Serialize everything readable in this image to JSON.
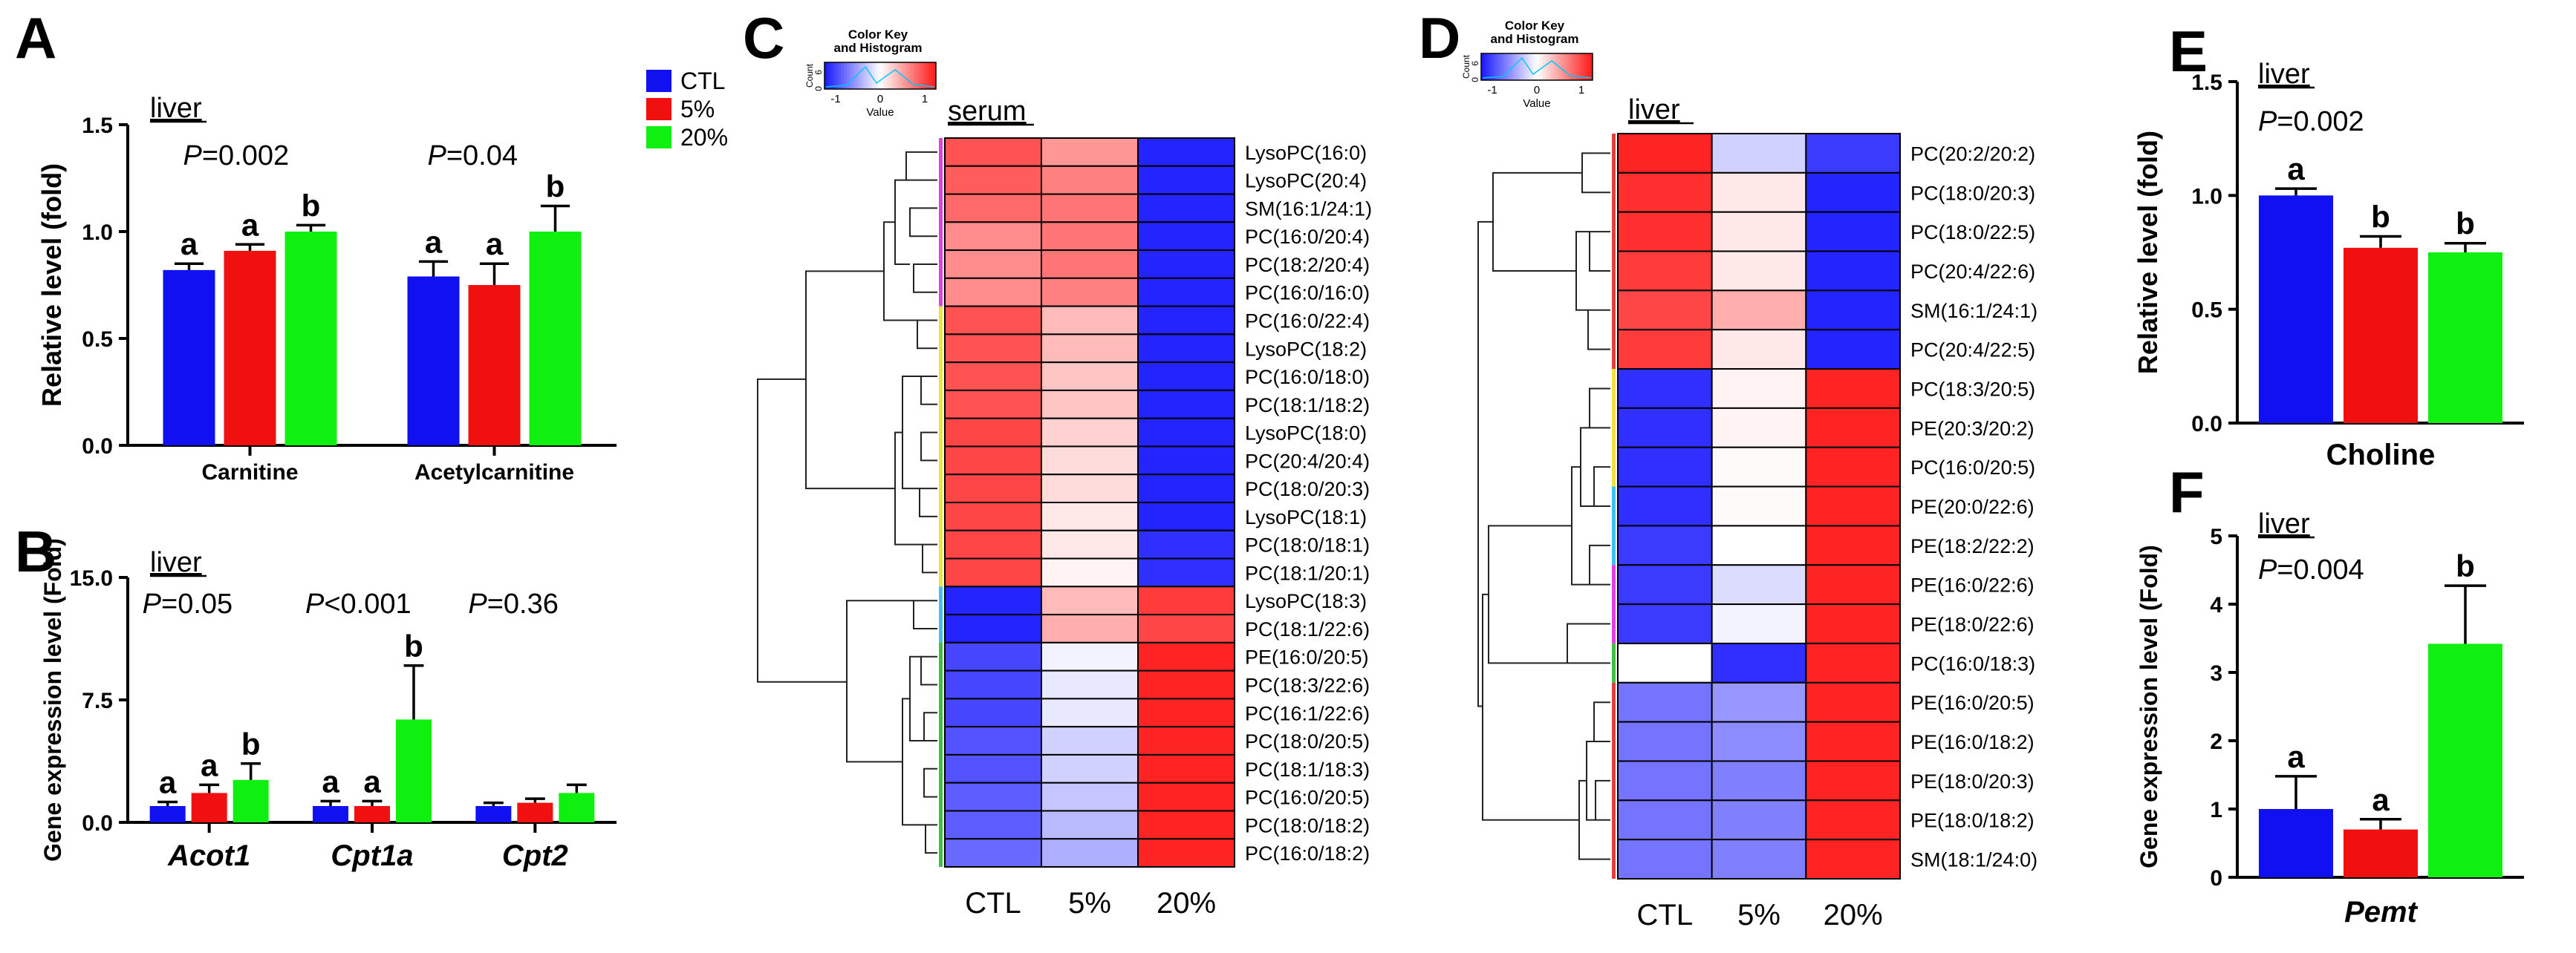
{
  "colors": {
    "CTL": "#1010f0",
    "5%": "#f01010",
    "20%": "#10f010",
    "axis": "#000000",
    "grid_line": "#000000"
  },
  "legend": {
    "entries": [
      "CTL",
      "5%",
      "20%"
    ]
  },
  "chart_data": [
    {
      "panel": "A",
      "type": "bar",
      "tissue_label": "liver",
      "ylabel": "Relative level (fold)",
      "ylim": [
        0,
        1.5
      ],
      "yticks": [
        "0.0",
        "0.5",
        "1.0",
        "1.5"
      ],
      "ytick_values": [
        0,
        0.5,
        1.0,
        1.5
      ],
      "categories": [
        "Carnitine",
        "Acetylcarnitine"
      ],
      "pvalues": [
        "=0.002",
        "=0.04"
      ],
      "series": [
        {
          "name": "CTL",
          "values": [
            0.82,
            0.79
          ],
          "errors": [
            0.03,
            0.07
          ],
          "letters": [
            "a",
            "a"
          ]
        },
        {
          "name": "5%",
          "values": [
            0.91,
            0.75
          ],
          "errors": [
            0.03,
            0.1
          ],
          "letters": [
            "a",
            "a"
          ]
        },
        {
          "name": "20%",
          "values": [
            1.0,
            1.0
          ],
          "errors": [
            0.03,
            0.12
          ],
          "letters": [
            "b",
            "b"
          ]
        }
      ]
    },
    {
      "panel": "B",
      "type": "bar",
      "tissue_label": "liver",
      "ylabel": "Gene expression level (Fold)",
      "ylim": [
        0,
        15
      ],
      "yticks": [
        "0.0",
        "7.5",
        "15.0"
      ],
      "ytick_values": [
        0,
        7.5,
        15
      ],
      "categories": [
        "Acot1",
        "Cpt1a",
        "Cpt2"
      ],
      "pvalues": [
        "=0.05",
        "<0.001",
        "=0.36"
      ],
      "series": [
        {
          "name": "CTL",
          "values": [
            1.0,
            1.0,
            1.0
          ],
          "errors": [
            0.25,
            0.3,
            0.2
          ],
          "letters": [
            "a",
            "a",
            ""
          ]
        },
        {
          "name": "5%",
          "values": [
            1.8,
            1.0,
            1.2
          ],
          "errors": [
            0.5,
            0.3,
            0.25
          ],
          "letters": [
            "a",
            "a",
            ""
          ]
        },
        {
          "name": "20%",
          "values": [
            2.6,
            6.3,
            1.8
          ],
          "errors": [
            1.0,
            3.3,
            0.5
          ],
          "letters": [
            "b",
            "b",
            ""
          ]
        }
      ]
    },
    {
      "panel": "C",
      "type": "heatmap",
      "tissue_label": "serum",
      "color_key_title": "Color Key\nand Histogram",
      "color_key_ticks": [
        "-1",
        "0",
        "1"
      ],
      "color_key_xlabel": "Value",
      "color_key_ylabel": "Count",
      "color_key_count_ticks": [
        "0",
        "6"
      ],
      "columns": [
        "CTL",
        "5%",
        "20%"
      ],
      "rows": [
        {
          "label": "LysoPC(16:0)",
          "values": [
            0.75,
            0.45,
            -0.95
          ]
        },
        {
          "label": "LysoPC(20:4)",
          "values": [
            0.7,
            0.55,
            -0.95
          ]
        },
        {
          "label": "SM(16:1/24:1)",
          "values": [
            0.65,
            0.6,
            -0.95
          ]
        },
        {
          "label": "PC(16:0/20:4)",
          "values": [
            0.5,
            0.6,
            -0.95
          ]
        },
        {
          "label": "PC(18:2/20:4)",
          "values": [
            0.5,
            0.6,
            -0.95
          ]
        },
        {
          "label": "PC(16:0/16:0)",
          "values": [
            0.5,
            0.55,
            -0.95
          ]
        },
        {
          "label": "PC(16:0/22:4)",
          "values": [
            0.75,
            0.3,
            -0.95
          ]
        },
        {
          "label": "LysoPC(18:2)",
          "values": [
            0.75,
            0.3,
            -0.95
          ]
        },
        {
          "label": "PC(16:0/18:0)",
          "values": [
            0.75,
            0.25,
            -0.95
          ]
        },
        {
          "label": "PC(18:1/18:2)",
          "values": [
            0.75,
            0.25,
            -0.95
          ]
        },
        {
          "label": "LysoPC(18:0)",
          "values": [
            0.8,
            0.2,
            -0.95
          ]
        },
        {
          "label": "PC(20:4/20:4)",
          "values": [
            0.8,
            0.15,
            -0.95
          ]
        },
        {
          "label": "PC(18:0/20:3)",
          "values": [
            0.8,
            0.15,
            -0.95
          ]
        },
        {
          "label": "LysoPC(18:1)",
          "values": [
            0.8,
            0.1,
            -0.95
          ]
        },
        {
          "label": "PC(18:0/18:1)",
          "values": [
            0.8,
            0.1,
            -0.9
          ]
        },
        {
          "label": "PC(18:1/20:1)",
          "values": [
            0.8,
            0.05,
            -0.9
          ]
        },
        {
          "label": "LysoPC(18:3)",
          "values": [
            -0.95,
            0.3,
            0.85
          ]
        },
        {
          "label": "PC(18:1/22:6)",
          "values": [
            -0.95,
            0.35,
            0.8
          ]
        },
        {
          "label": "PE(16:0/20:5)",
          "values": [
            -0.8,
            -0.05,
            0.95
          ]
        },
        {
          "label": "PC(18:3/22:6)",
          "values": [
            -0.8,
            -0.1,
            0.95
          ]
        },
        {
          "label": "PC(16:1/22:6)",
          "values": [
            -0.8,
            -0.1,
            0.95
          ]
        },
        {
          "label": "PC(18:0/20:5)",
          "values": [
            -0.75,
            -0.2,
            0.95
          ]
        },
        {
          "label": "PC(18:1/18:3)",
          "values": [
            -0.75,
            -0.2,
            0.95
          ]
        },
        {
          "label": "PC(16:0/20:5)",
          "values": [
            -0.7,
            -0.25,
            0.95
          ]
        },
        {
          "label": "PC(18:0/18:2)",
          "values": [
            -0.7,
            -0.3,
            0.95
          ]
        },
        {
          "label": "PC(16:0/18:2)",
          "values": [
            -0.65,
            -0.35,
            0.95
          ]
        }
      ]
    },
    {
      "panel": "D",
      "type": "heatmap",
      "tissue_label": "liver",
      "color_key_title": "Color Key\nand Histogram",
      "color_key_ticks": [
        "-1",
        "0",
        "1"
      ],
      "color_key_xlabel": "Value",
      "color_key_ylabel": "Count",
      "color_key_count_ticks": [
        "0",
        "6"
      ],
      "columns": [
        "CTL",
        "5%",
        "20%"
      ],
      "rows": [
        {
          "label": "PC(20:2/20:2)",
          "values": [
            0.95,
            -0.2,
            -0.85
          ]
        },
        {
          "label": "PC(18:0/20:3)",
          "values": [
            0.9,
            0.1,
            -0.95
          ]
        },
        {
          "label": "PC(18:0/22:5)",
          "values": [
            0.9,
            0.1,
            -0.95
          ]
        },
        {
          "label": "PC(20:4/22:6)",
          "values": [
            0.85,
            0.1,
            -0.95
          ]
        },
        {
          "label": "SM(16:1/24:1)",
          "values": [
            0.8,
            0.35,
            -0.95
          ]
        },
        {
          "label": "PC(20:4/22:5)",
          "values": [
            0.85,
            0.1,
            -0.95
          ]
        },
        {
          "label": "PC(18:3/20:5)",
          "values": [
            -0.9,
            0.05,
            0.95
          ]
        },
        {
          "label": "PE(20:3/20:2)",
          "values": [
            -0.9,
            0.05,
            0.95
          ]
        },
        {
          "label": "PC(16:0/20:5)",
          "values": [
            -0.9,
            0.02,
            0.95
          ]
        },
        {
          "label": "PE(20:0/22:6)",
          "values": [
            -0.9,
            0.02,
            0.95
          ]
        },
        {
          "label": "PE(18:2/22:2)",
          "values": [
            -0.85,
            0.0,
            0.95
          ]
        },
        {
          "label": "PE(16:0/22:6)",
          "values": [
            -0.85,
            -0.15,
            0.95
          ]
        },
        {
          "label": "PE(18:0/22:6)",
          "values": [
            -0.85,
            -0.05,
            0.95
          ]
        },
        {
          "label": "PC(16:0/18:3)",
          "values": [
            0.0,
            -0.9,
            0.95
          ]
        },
        {
          "label": "PE(16:0/20:5)",
          "values": [
            -0.6,
            -0.45,
            0.95
          ]
        },
        {
          "label": "PE(16:0/18:2)",
          "values": [
            -0.6,
            -0.5,
            0.95
          ]
        },
        {
          "label": "PE(18:0/20:3)",
          "values": [
            -0.6,
            -0.55,
            0.95
          ]
        },
        {
          "label": "PE(18:0/18:2)",
          "values": [
            -0.6,
            -0.55,
            0.95
          ]
        },
        {
          "label": "SM(18:1/24:0)",
          "values": [
            -0.6,
            -0.55,
            0.95
          ]
        }
      ]
    },
    {
      "panel": "E",
      "type": "bar",
      "tissue_label": "liver",
      "ylabel": "Relative level (fold)",
      "ylim": [
        0,
        1.5
      ],
      "yticks": [
        "0.0",
        "0.5",
        "1.0",
        "1.5"
      ],
      "ytick_values": [
        0,
        0.5,
        1.0,
        1.5
      ],
      "categories": [
        "Choline"
      ],
      "pvalues": [
        "=0.002"
      ],
      "series": [
        {
          "name": "CTL",
          "values": [
            1.0
          ],
          "errors": [
            0.03
          ],
          "letters": [
            "a"
          ]
        },
        {
          "name": "5%",
          "values": [
            0.77
          ],
          "errors": [
            0.05
          ],
          "letters": [
            "b"
          ]
        },
        {
          "name": "20%",
          "values": [
            0.75
          ],
          "errors": [
            0.04
          ],
          "letters": [
            "b"
          ]
        }
      ]
    },
    {
      "panel": "F",
      "type": "bar",
      "tissue_label": "liver",
      "ylabel": "Gene expression level (Fold)",
      "ylim": [
        0,
        5
      ],
      "yticks": [
        "0",
        "1",
        "2",
        "3",
        "4",
        "5"
      ],
      "ytick_values": [
        0,
        1,
        2,
        3,
        4,
        5
      ],
      "categories": [
        "Pemt"
      ],
      "pvalues": [
        "=0.004"
      ],
      "series": [
        {
          "name": "CTL",
          "values": [
            1.0
          ],
          "errors": [
            0.48
          ],
          "letters": [
            "a"
          ]
        },
        {
          "name": "5%",
          "values": [
            0.7
          ],
          "errors": [
            0.15
          ],
          "letters": [
            "a"
          ]
        },
        {
          "name": "20%",
          "values": [
            3.42
          ],
          "errors": [
            0.85
          ],
          "letters": [
            "b"
          ]
        }
      ]
    }
  ]
}
